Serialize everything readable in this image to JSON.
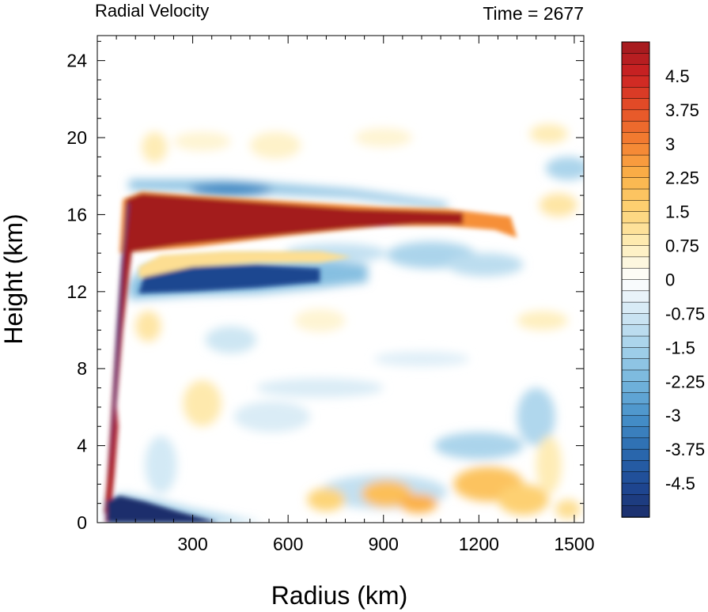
{
  "chart_data": {
    "type": "heatmap",
    "title_left": "Radial Velocity",
    "title_right": "Time = 2677",
    "xlabel": "Radius (km)",
    "ylabel": "Height (km)",
    "xlim": [
      0,
      1530
    ],
    "ylim": [
      0,
      25.3
    ],
    "xticks": [
      300,
      600,
      900,
      1200,
      1500
    ],
    "yticks": [
      0,
      4,
      8,
      12,
      16,
      20,
      24
    ],
    "x_minor_step": 60,
    "y_minor_step": 1,
    "colorbar": {
      "min": -5.25,
      "max": 5.25,
      "step": 0.25,
      "tick_labels": [
        "4.5",
        "3.75",
        "3",
        "2.25",
        "1.5",
        "0.75",
        "0",
        "-0.75",
        "-1.5",
        "-2.25",
        "-3",
        "-3.75",
        "-4.5"
      ],
      "tick_values": [
        4.5,
        3.75,
        3,
        2.25,
        1.5,
        0.75,
        0,
        -0.75,
        -1.5,
        -2.25,
        -3,
        -3.75,
        -4.5
      ]
    },
    "field_features": [
      {
        "kind": "outflow-jet",
        "x": [
          100,
          1300
        ],
        "y": [
          14.5,
          17.2
        ],
        "value": 5.25
      },
      {
        "kind": "eyewall-inflow",
        "x": [
          40,
          90
        ],
        "y": [
          0,
          16
        ],
        "value": 5.25
      },
      {
        "kind": "return-inflow",
        "x": [
          100,
          800
        ],
        "y": [
          11.5,
          13.5
        ],
        "value": -4.8
      },
      {
        "kind": "boundary-layer-inflow",
        "x": [
          30,
          450
        ],
        "y": [
          0,
          1.5
        ],
        "value": -5.25
      },
      {
        "kind": "upper-inflow",
        "x": [
          100,
          1100
        ],
        "y": [
          17.3,
          17.8
        ],
        "value": -2.5
      },
      {
        "kind": "low-level-outflow",
        "x": [
          600,
          1400
        ],
        "y": [
          0.3,
          3.0
        ],
        "value": 1.8
      }
    ]
  }
}
